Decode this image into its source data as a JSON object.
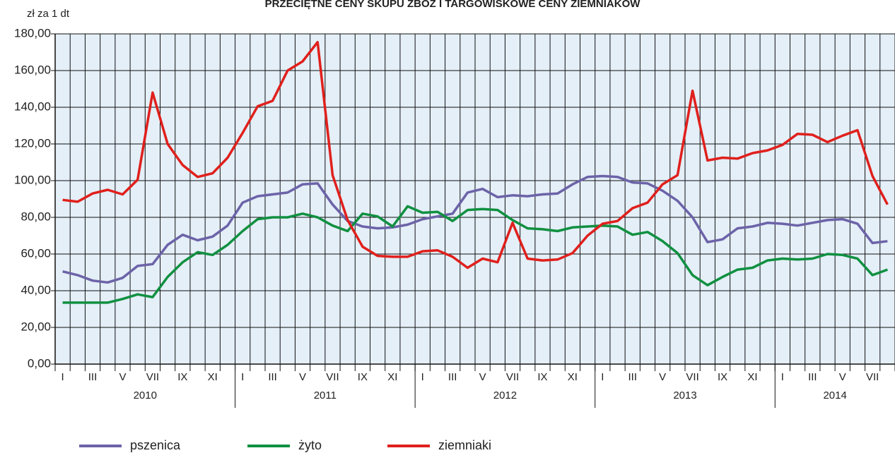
{
  "chart_data": {
    "type": "line",
    "title": "PRZECIĘTNE CENY SKUPU ZBÓŻ I TARGOWISKOWE CENY ZIEMNIAKÓW",
    "y_label": "zł za 1 dt",
    "categories": [
      "I",
      null,
      "III",
      null,
      "V",
      null,
      "VII",
      null,
      "IX",
      null,
      "XI",
      null,
      "I",
      null,
      "III",
      null,
      "V",
      null,
      "VII",
      null,
      "IX",
      null,
      "XI",
      null,
      "I",
      null,
      "III",
      null,
      "V",
      null,
      "VII",
      null,
      "IX",
      null,
      "XI",
      null,
      "I",
      null,
      "III",
      null,
      "V",
      null,
      "VII",
      null,
      "IX",
      null,
      "XI",
      null,
      "I",
      null,
      "III",
      null,
      "V",
      null,
      "VII",
      null
    ],
    "years": [
      "2010",
      "2011",
      "2012",
      "2013",
      "2014"
    ],
    "ylim": [
      0,
      180
    ],
    "yticks": [
      {
        "value": 0,
        "label": "0,00"
      },
      {
        "value": 20,
        "label": "20,00"
      },
      {
        "value": 40,
        "label": "40,00"
      },
      {
        "value": 60,
        "label": "60,00"
      },
      {
        "value": 80,
        "label": "80,00"
      },
      {
        "value": 100,
        "label": "100,00"
      },
      {
        "value": 120,
        "label": "120,00"
      },
      {
        "value": 140,
        "label": "140,00"
      },
      {
        "value": 160,
        "label": "160,00"
      },
      {
        "value": 180,
        "label": "180,00"
      }
    ],
    "grid": true,
    "series": [
      {
        "name": "pszenica",
        "color": "#6c63a8",
        "values": [
          50.5,
          48.5,
          45.5,
          44.5,
          47,
          53.5,
          54.5,
          65,
          70.5,
          67.5,
          69.5,
          75.5,
          88,
          91.5,
          92.5,
          93.5,
          98,
          98.5,
          87,
          78,
          75,
          74,
          74.5,
          76,
          79,
          80.5,
          82,
          93.5,
          95.5,
          91,
          92,
          91.5,
          92.5,
          93,
          98,
          102,
          102.5,
          102,
          99,
          98.5,
          94.5,
          89,
          80,
          66.5,
          68,
          74,
          75,
          77,
          76.5,
          75.5,
          77,
          78.5,
          79,
          76.5,
          66,
          67
        ]
      },
      {
        "name": "żyto",
        "color": "#109040",
        "values": [
          33.5,
          33.5,
          33.5,
          33.5,
          35.5,
          38,
          36.5,
          47.5,
          55.5,
          61,
          59.5,
          65,
          72.5,
          79,
          80,
          80,
          82,
          80,
          75.5,
          72.5,
          82,
          80.5,
          75,
          86,
          82.5,
          83,
          78,
          84,
          84.5,
          84,
          78.5,
          74,
          73.5,
          72.5,
          74.5,
          75,
          75.5,
          75,
          70.5,
          72,
          67,
          60.5,
          48.5,
          43,
          47.5,
          51.5,
          52.5,
          56.5,
          57.5,
          57,
          57.5,
          60,
          59.5,
          57.5,
          48.5,
          51.5
        ]
      },
      {
        "name": "ziemniaki",
        "color": "#e0201c",
        "values": [
          89.5,
          88.5,
          93,
          95,
          92.5,
          100.5,
          148,
          120,
          108.5,
          102,
          104,
          112.5,
          126,
          140.5,
          143.5,
          160,
          165,
          175.5,
          103,
          78.5,
          64,
          59,
          58.5,
          58.5,
          61.5,
          62,
          58.5,
          52.5,
          57.5,
          55.5,
          77,
          57.5,
          56.5,
          57,
          60.5,
          70,
          76.5,
          78,
          85,
          88,
          98,
          103,
          149,
          111,
          112.5,
          112,
          115,
          116.5,
          119.5,
          125.5,
          125,
          121,
          124.5,
          127.5,
          102.5,
          87
        ]
      }
    ]
  }
}
